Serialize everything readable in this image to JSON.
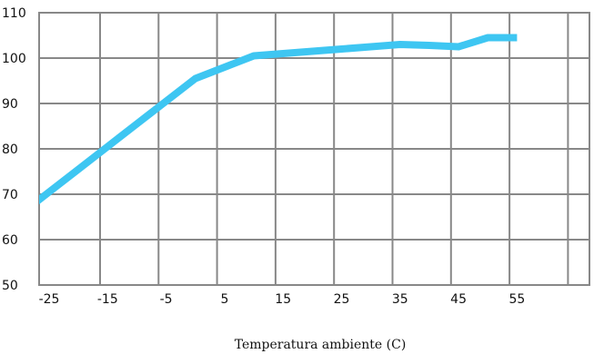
{
  "chart_data": {
    "type": "line",
    "title": "",
    "xlabel": "Temperatura ambiente (C)",
    "ylabel": "",
    "xlim": [
      -30,
      65
    ],
    "ylim": [
      50,
      110
    ],
    "x_ticks": [
      -25,
      -15,
      -5,
      5,
      15,
      25,
      35,
      45,
      55
    ],
    "y_ticks": [
      50,
      60,
      70,
      80,
      90,
      100,
      110
    ],
    "grid": true,
    "legend": "none",
    "series": [
      {
        "color": "#3ec6f2",
        "x": [
          -30,
          -25,
          -20,
          -15,
          -10,
          -5,
          0,
          5,
          10,
          15,
          20,
          25,
          30,
          35,
          40,
          45,
          50,
          55
        ],
        "y": [
          65.5,
          70.5,
          75.5,
          80.5,
          85.5,
          90.5,
          95.5,
          98,
          100.5,
          101,
          101.5,
          102,
          102.5,
          103,
          102.8,
          102.5,
          104.5,
          104.5
        ]
      }
    ],
    "colors": {
      "grid": "#888888",
      "frame": "#888888",
      "line": "#3ec6f2",
      "text": "#111111"
    }
  }
}
